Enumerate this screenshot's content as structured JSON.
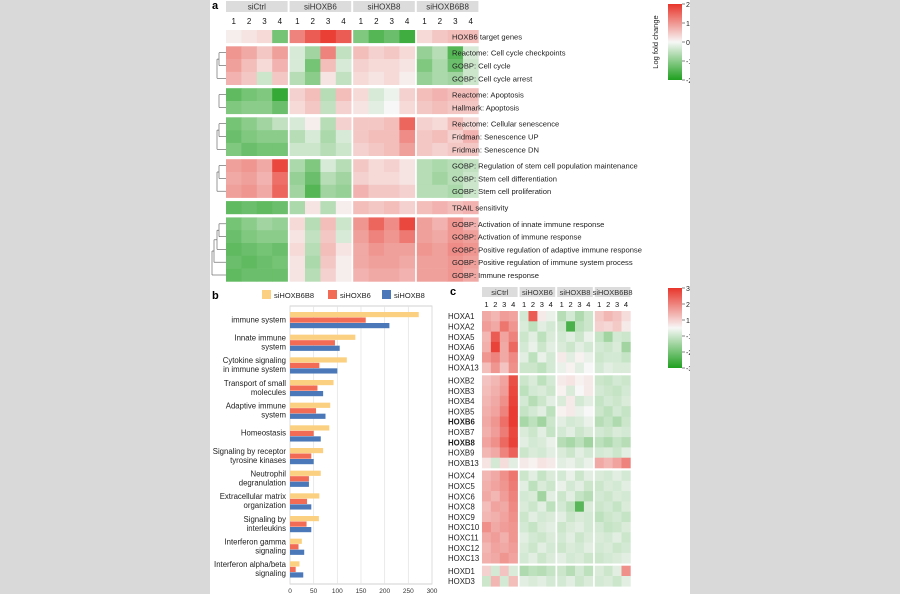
{
  "colors": {
    "low": "#1fa01f",
    "mid": "#f7f7f7",
    "high": "#e8352b",
    "bar_siHOXB6B8": "#fbd080",
    "bar_siHOXB6": "#f26b55",
    "bar_siHOXB8": "#4a78b8",
    "group_header": "#dcdcdc"
  },
  "panel_a": {
    "label": "a",
    "groups": [
      "siCtrl",
      "siHOXB6",
      "siHOXB8",
      "siHOXB6B8"
    ],
    "replicates": [
      "1",
      "2",
      "3",
      "4"
    ],
    "colorbar": {
      "title": "Log fold change",
      "ticks": [
        "2",
        "1",
        "0",
        "-1",
        "-2"
      ]
    },
    "rows": [
      {
        "label": "HOXB6 target genes",
        "block": 0,
        "values": [
          0.1,
          0.2,
          0.3,
          -1.2,
          1.2,
          1.6,
          1.9,
          1.6,
          -1.1,
          -1.5,
          -1.3,
          -1.7,
          0.3,
          0.5,
          0.6,
          0.6
        ]
      },
      {
        "label": "Reactome: Cell cycle checkpoints",
        "block": 1,
        "values": [
          1.0,
          0.8,
          0.5,
          0.9,
          -0.3,
          -0.8,
          1.2,
          -0.5,
          0.6,
          0.4,
          0.5,
          0.3,
          -0.9,
          -0.6,
          -1.5,
          -0.3
        ]
      },
      {
        "label": "GOBP: Cell cycle",
        "block": 1,
        "values": [
          0.9,
          0.6,
          0.3,
          0.7,
          -0.3,
          -1.2,
          0.6,
          -0.3,
          0.4,
          0.3,
          0.3,
          0.2,
          -1.1,
          -0.7,
          -1.3,
          -0.4
        ]
      },
      {
        "label": "GOBP: Cell cycle arrest",
        "block": 1,
        "values": [
          0.7,
          0.5,
          -0.4,
          0.5,
          -0.6,
          -1.0,
          0.2,
          -0.5,
          0.3,
          0.2,
          0.3,
          0.1,
          -0.9,
          -0.7,
          -0.8,
          -0.4
        ]
      },
      {
        "label": "Reactome: Apoptosis",
        "block": 2,
        "values": [
          -1.4,
          -1.2,
          -1.1,
          -1.8,
          0.4,
          0.6,
          -0.6,
          0.6,
          0.3,
          -0.3,
          -0.1,
          0.4,
          0.6,
          0.7,
          0.6,
          0.6
        ]
      },
      {
        "label": "Hallmark: Apoptosis",
        "block": 2,
        "values": [
          -1.1,
          -1.0,
          -1.0,
          -1.3,
          0.3,
          0.5,
          -0.5,
          0.4,
          0.2,
          -0.2,
          0.0,
          0.3,
          0.5,
          0.6,
          0.5,
          0.5
        ]
      },
      {
        "label": "Reactome: Cellular senescence",
        "block": 3,
        "values": [
          -1.2,
          -1.0,
          -0.8,
          -0.5,
          -0.3,
          0.1,
          -0.6,
          0.4,
          0.5,
          0.5,
          0.6,
          1.5,
          0.4,
          0.3,
          0.6,
          0.3
        ]
      },
      {
        "label": "Fridman: Senescence UP",
        "block": 3,
        "values": [
          -1.3,
          -1.1,
          -1.0,
          -1.0,
          -0.6,
          -0.3,
          -0.7,
          -0.3,
          0.5,
          0.6,
          0.6,
          1.1,
          0.5,
          0.6,
          0.4,
          0.7
        ]
      },
      {
        "label": "Fridman: Senescence DN",
        "block": 3,
        "values": [
          -1.1,
          -1.3,
          -1.2,
          -1.2,
          -0.4,
          -0.4,
          -0.6,
          -0.4,
          0.4,
          0.5,
          0.6,
          0.9,
          0.5,
          0.4,
          0.5,
          0.5
        ]
      },
      {
        "label": "GOBP: Regulation of stem cell population maintenance",
        "block": 4,
        "values": [
          0.9,
          1.0,
          0.8,
          1.8,
          -0.7,
          -1.1,
          -0.3,
          -0.6,
          0.5,
          0.3,
          0.4,
          0.2,
          -0.6,
          -0.7,
          -0.6,
          -0.5
        ]
      },
      {
        "label": "GOBP: Stem cell differentiation",
        "block": 4,
        "values": [
          0.8,
          0.9,
          0.7,
          1.4,
          -0.9,
          -1.3,
          -0.6,
          -0.8,
          0.4,
          0.3,
          0.3,
          0.2,
          -0.6,
          -0.8,
          -0.6,
          -0.4
        ]
      },
      {
        "label": "GOBP: Stem cell proliferation",
        "block": 4,
        "values": [
          0.9,
          1.0,
          0.8,
          1.5,
          -0.8,
          -1.5,
          -0.8,
          -0.9,
          0.7,
          0.5,
          0.5,
          0.4,
          -0.6,
          -0.6,
          -0.7,
          -0.4
        ]
      },
      {
        "label": "TRAIL sensitivity",
        "block": 5,
        "values": [
          -1.4,
          -1.3,
          -1.4,
          -1.3,
          -0.7,
          0.2,
          -0.6,
          0.1,
          0.6,
          0.5,
          0.6,
          0.4,
          0.6,
          0.7,
          0.6,
          0.7
        ]
      },
      {
        "label": "GOBP: Activation of innate immune response",
        "block": 6,
        "values": [
          -1.2,
          -1.0,
          -0.8,
          -0.9,
          0.3,
          -0.6,
          0.6,
          -0.4,
          1.0,
          1.5,
          1.1,
          1.8,
          0.9,
          0.7,
          1.0,
          0.7
        ]
      },
      {
        "label": "GOBP: Activation of immune response",
        "block": 6,
        "values": [
          -1.3,
          -1.1,
          -1.0,
          -1.0,
          0.2,
          -0.5,
          0.5,
          -0.3,
          0.9,
          1.2,
          1.0,
          1.3,
          0.9,
          0.8,
          1.0,
          0.9
        ]
      },
      {
        "label": "GOBP: Positive regulation of adaptive immune response",
        "block": 6,
        "values": [
          -1.4,
          -1.3,
          -1.2,
          -1.3,
          0.3,
          -0.6,
          0.6,
          0.2,
          0.8,
          1.0,
          0.9,
          0.9,
          1.0,
          0.9,
          1.1,
          1.0
        ]
      },
      {
        "label": "GOBP: Positive regulation of immune system process",
        "block": 6,
        "values": [
          -1.3,
          -1.4,
          -1.3,
          -1.2,
          0.2,
          -0.7,
          0.5,
          0.1,
          0.8,
          0.9,
          0.9,
          0.8,
          0.9,
          0.9,
          1.0,
          0.9
        ]
      },
      {
        "label": "GOBP: Immune response",
        "block": 6,
        "values": [
          -1.4,
          -1.3,
          -1.3,
          -1.3,
          0.2,
          -0.6,
          0.4,
          0.1,
          0.7,
          0.8,
          0.8,
          0.7,
          0.9,
          0.9,
          1.0,
          0.8
        ]
      }
    ]
  },
  "panel_b": {
    "label": "b",
    "chart_data": {
      "type": "bar",
      "orientation": "horizontal",
      "legend": [
        "siHOXB6B8",
        "siHOXB6",
        "siHOXB8"
      ],
      "categories": [
        "immune system",
        "Innate immune\nsystem",
        "Cytokine signaling\nin immune system",
        "Transport of small\nmolecules",
        "Adaptive immune\nsystem",
        "Homeostasis",
        "Signaling by receptor\ntyrosine kinases",
        "Neutrophil\ndegranulation",
        "Extracellular matrix\norganization",
        "Signaling by\ninterleukins",
        "Interferon gamma\nsignaling",
        "Interferon alpha/beta\nsignaling"
      ],
      "series": [
        {
          "name": "siHOXB6B8",
          "values": [
            272,
            138,
            120,
            92,
            85,
            83,
            70,
            65,
            62,
            61,
            25,
            20
          ]
        },
        {
          "name": "siHOXB6",
          "values": [
            160,
            95,
            62,
            58,
            55,
            50,
            45,
            40,
            36,
            35,
            18,
            12
          ]
        },
        {
          "name": "siHOXB8",
          "values": [
            210,
            105,
            100,
            70,
            75,
            65,
            50,
            40,
            45,
            45,
            30,
            28
          ]
        }
      ],
      "xlim": [
        0,
        300
      ],
      "xticks": [
        "0",
        "50",
        "100",
        "150",
        "200",
        "250",
        "300"
      ]
    }
  },
  "panel_c": {
    "label": "c",
    "groups": [
      "siCtrl",
      "siHOXB6",
      "siHOXB8",
      "siHOXB6B8"
    ],
    "replicates": [
      "1",
      "2",
      "3",
      "4"
    ],
    "colorbar": {
      "ticks": [
        "3",
        "2",
        "1",
        "-1",
        "-2",
        "-3"
      ]
    },
    "rows": [
      {
        "label": "HOXA1",
        "bold": false,
        "block": 0,
        "values": [
          1.2,
          1.0,
          1.4,
          1.3,
          -0.5,
          2.4,
          0.2,
          -0.2,
          -0.9,
          -0.5,
          -1.0,
          -0.6,
          0.7,
          1.0,
          0.8,
          0.4
        ]
      },
      {
        "label": "HOXA2",
        "bold": false,
        "block": 0,
        "values": [
          1.4,
          1.2,
          2.0,
          1.5,
          -0.4,
          -0.8,
          -0.3,
          -0.5,
          -0.6,
          -2.4,
          -0.8,
          -0.6,
          0.6,
          0.5,
          0.7,
          0.2
        ]
      },
      {
        "label": "HOXA5",
        "bold": false,
        "block": 0,
        "values": [
          1.0,
          2.4,
          1.3,
          1.8,
          -0.6,
          -0.3,
          -0.8,
          -0.4,
          -0.5,
          -0.3,
          -0.6,
          -0.2,
          -0.7,
          -1.2,
          -0.5,
          -0.6
        ]
      },
      {
        "label": "HOXA6",
        "bold": false,
        "block": 0,
        "values": [
          1.1,
          2.8,
          1.2,
          2.2,
          -0.5,
          -0.2,
          -0.6,
          -0.3,
          -0.4,
          -0.6,
          -0.3,
          -0.5,
          -0.5,
          -0.6,
          -0.4,
          -1.2
        ]
      },
      {
        "label": "HOXA9",
        "bold": false,
        "block": 0,
        "values": [
          1.5,
          1.8,
          1.2,
          1.7,
          -0.3,
          -0.8,
          -0.2,
          -0.5,
          0.2,
          -0.3,
          0.1,
          -0.2,
          -0.6,
          -0.5,
          -0.5,
          -0.7
        ]
      },
      {
        "label": "HOXA13",
        "bold": false,
        "block": 0,
        "values": [
          0.9,
          1.5,
          0.8,
          1.6,
          -0.6,
          -0.6,
          -0.8,
          -0.5,
          -0.2,
          0.1,
          -0.3,
          0.0,
          -0.5,
          -0.3,
          -0.4,
          -0.4
        ]
      },
      {
        "label": "HOXB2",
        "bold": false,
        "block": 1,
        "values": [
          0.8,
          1.0,
          1.3,
          2.6,
          -0.6,
          -0.4,
          -0.8,
          -0.5,
          0.2,
          0.3,
          0.1,
          0.2,
          -0.6,
          -0.7,
          -0.5,
          -0.6
        ]
      },
      {
        "label": "HOXB3",
        "bold": false,
        "block": 1,
        "values": [
          0.9,
          1.1,
          1.4,
          2.7,
          -0.8,
          -0.5,
          -0.4,
          -0.6,
          0.1,
          -0.4,
          0.0,
          0.2,
          -0.5,
          -0.6,
          -0.7,
          -0.5
        ]
      },
      {
        "label": "HOXB4",
        "bold": false,
        "block": 1,
        "values": [
          1.0,
          1.2,
          1.6,
          2.8,
          -0.5,
          -0.9,
          -0.6,
          -0.3,
          -0.4,
          0.2,
          -0.5,
          -0.3,
          -0.7,
          -0.5,
          -0.6,
          -0.4
        ]
      },
      {
        "label": "HOXB5",
        "bold": false,
        "block": 1,
        "values": [
          1.1,
          1.3,
          1.8,
          2.9,
          -0.7,
          -0.5,
          -0.3,
          -0.8,
          0.1,
          0.2,
          -0.2,
          0.0,
          -0.6,
          -0.8,
          -0.5,
          -0.7
        ]
      },
      {
        "label": "HOXB6",
        "bold": true,
        "block": 1,
        "values": [
          1.2,
          1.5,
          2.1,
          2.9,
          -1.1,
          -0.8,
          -1.2,
          -0.6,
          -0.3,
          -0.5,
          -0.4,
          -0.2,
          -0.9,
          -0.7,
          -1.0,
          -0.6
        ]
      },
      {
        "label": "HOXB7",
        "bold": false,
        "block": 1,
        "values": [
          1.1,
          1.4,
          1.9,
          2.7,
          -0.4,
          -0.6,
          -0.3,
          -0.7,
          -0.5,
          -0.3,
          -0.6,
          -0.4,
          -0.5,
          -0.6,
          -0.4,
          -0.5
        ]
      },
      {
        "label": "HOXB8",
        "bold": true,
        "block": 1,
        "values": [
          1.3,
          1.6,
          2.2,
          2.8,
          -0.3,
          -0.5,
          -0.4,
          -0.2,
          -0.9,
          -1.1,
          -0.8,
          -1.2,
          -0.8,
          -1.0,
          -0.7,
          -0.9
        ]
      },
      {
        "label": "HOXB9",
        "bold": false,
        "block": 1,
        "values": [
          1.0,
          1.2,
          1.8,
          2.3,
          -0.6,
          -0.4,
          -0.5,
          -0.3,
          -0.4,
          -0.6,
          -0.3,
          -0.5,
          -0.5,
          -0.4,
          -0.6,
          -0.3
        ]
      },
      {
        "label": "HOXB13",
        "bold": false,
        "block": 1,
        "values": [
          0.3,
          -0.5,
          0.4,
          -0.3,
          0.2,
          0.1,
          0.3,
          0.2,
          -0.3,
          -0.2,
          -0.4,
          -0.2,
          1.2,
          1.0,
          1.3,
          1.8
        ]
      },
      {
        "label": "HOXC4",
        "bold": false,
        "block": 2,
        "values": [
          1.0,
          1.2,
          1.6,
          2.0,
          -0.6,
          -0.3,
          -0.7,
          -0.4,
          -0.5,
          -0.2,
          -0.6,
          -0.3,
          -0.4,
          -0.5,
          -0.3,
          -0.5
        ]
      },
      {
        "label": "HOXC5",
        "bold": false,
        "block": 2,
        "values": [
          1.1,
          1.3,
          1.5,
          1.9,
          -0.3,
          -0.8,
          -0.4,
          -0.6,
          -0.2,
          -0.5,
          -0.3,
          -0.6,
          -0.6,
          -0.4,
          -0.5,
          -0.3
        ]
      },
      {
        "label": "HOXC6",
        "bold": false,
        "block": 2,
        "values": [
          1.2,
          1.0,
          1.4,
          1.8,
          -0.5,
          -0.4,
          -1.2,
          -0.3,
          -0.6,
          -0.3,
          -0.7,
          -0.9,
          -0.5,
          -0.6,
          -0.4,
          -0.5
        ]
      },
      {
        "label": "HOXC8",
        "bold": false,
        "block": 2,
        "values": [
          0.9,
          1.3,
          1.2,
          1.7,
          -0.4,
          -0.6,
          -0.3,
          -0.8,
          -0.5,
          -0.8,
          -2.2,
          -0.4,
          -0.6,
          -0.5,
          -0.7,
          -0.4
        ]
      },
      {
        "label": "HOXC9",
        "bold": false,
        "block": 2,
        "values": [
          1.0,
          1.1,
          1.3,
          1.6,
          -0.6,
          -0.3,
          -0.5,
          -0.4,
          -0.3,
          -0.6,
          -0.4,
          -0.5,
          -0.8,
          -0.6,
          -0.5,
          -0.7
        ]
      },
      {
        "label": "HOXC10",
        "bold": false,
        "block": 2,
        "values": [
          1.6,
          1.2,
          1.4,
          1.5,
          -0.5,
          -0.7,
          -0.4,
          -0.3,
          -0.6,
          -0.4,
          -0.3,
          -0.5,
          -0.5,
          -0.7,
          -0.6,
          -0.4
        ]
      },
      {
        "label": "HOXC11",
        "bold": false,
        "block": 2,
        "values": [
          1.2,
          1.4,
          1.1,
          1.5,
          -0.3,
          -0.5,
          -0.6,
          -0.4,
          -0.5,
          -0.3,
          -0.6,
          -0.4,
          -0.4,
          -0.5,
          -0.3,
          -0.6
        ]
      },
      {
        "label": "HOXC12",
        "bold": false,
        "block": 2,
        "values": [
          1.0,
          1.3,
          1.2,
          1.4,
          -0.4,
          -0.6,
          -0.3,
          -0.5,
          -0.6,
          -0.4,
          -0.5,
          -0.3,
          -0.5,
          -0.4,
          -0.6,
          -0.5
        ]
      },
      {
        "label": "HOXC13",
        "bold": false,
        "block": 2,
        "values": [
          1.1,
          1.2,
          1.5,
          1.3,
          -0.5,
          -0.3,
          -0.6,
          -0.4,
          -0.3,
          -0.5,
          -0.4,
          -0.6,
          -0.6,
          -0.5,
          -0.4,
          -0.3
        ]
      },
      {
        "label": "HOXD1",
        "bold": false,
        "block": 3,
        "values": [
          0.6,
          -0.5,
          0.8,
          -0.4,
          -1.0,
          -0.8,
          -0.9,
          -0.7,
          -0.6,
          -0.9,
          -0.5,
          -0.8,
          -0.4,
          -0.6,
          -0.3,
          1.6
        ]
      },
      {
        "label": "HOXD3",
        "bold": false,
        "block": 3,
        "values": [
          -0.6,
          1.0,
          -0.5,
          0.9,
          -0.3,
          -0.4,
          -0.3,
          -0.5,
          -0.5,
          -0.3,
          -0.6,
          -0.4,
          -0.5,
          -0.4,
          -0.6,
          -0.3
        ]
      }
    ]
  }
}
